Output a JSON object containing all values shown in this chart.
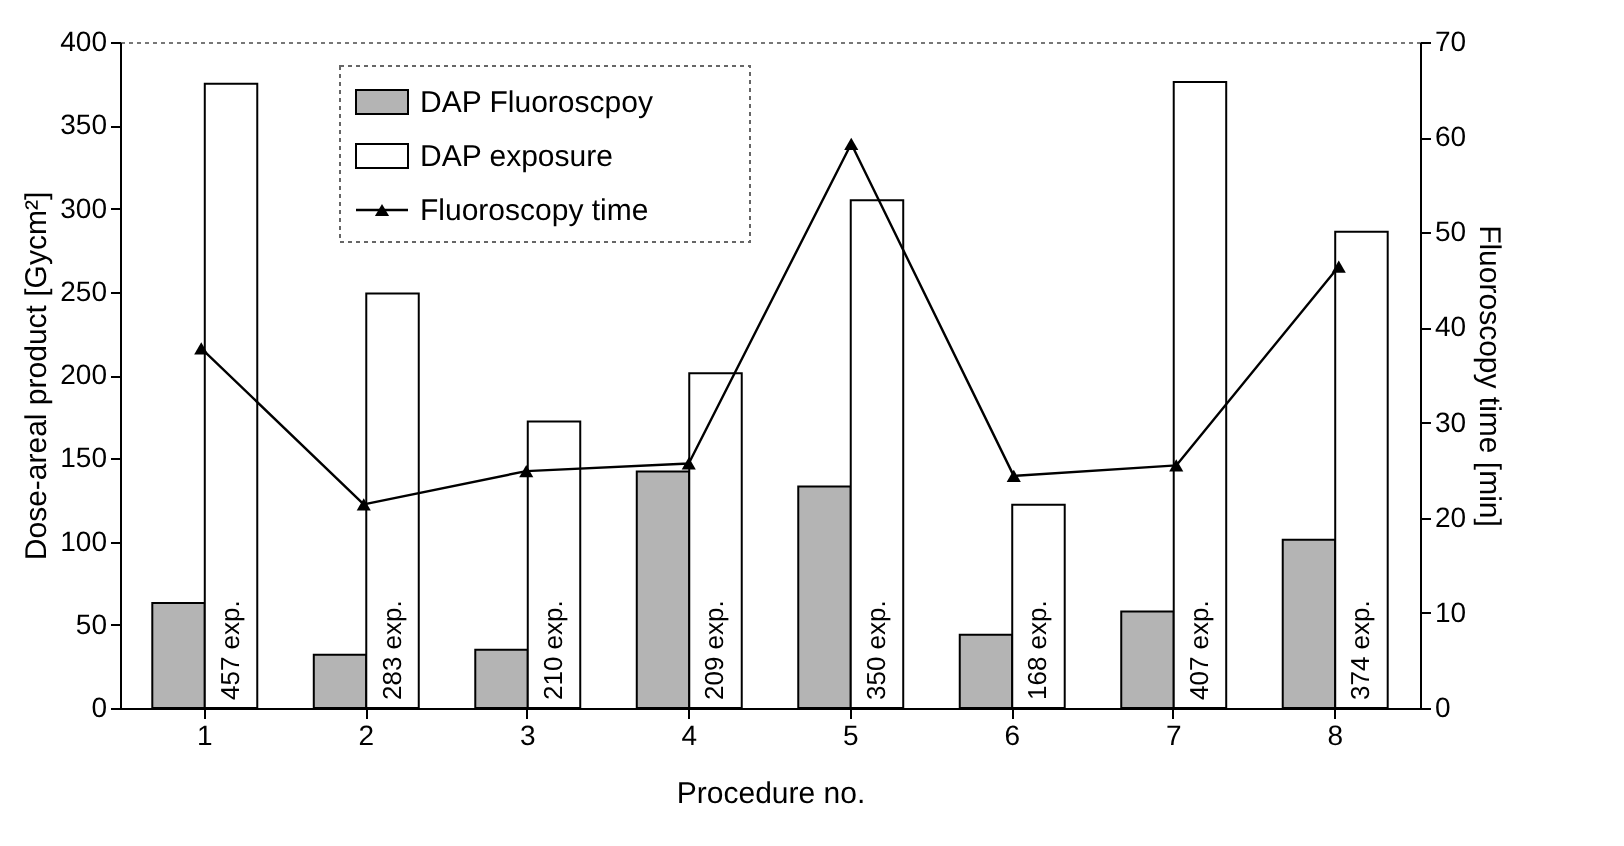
{
  "chart_data": {
    "type": "bar",
    "xlabel": "Procedure no.",
    "ylabel": "Dose-areal product [Gycm²]",
    "y2label": "Fluoroscopy time [min]",
    "categories": [
      "1",
      "2",
      "3",
      "4",
      "5",
      "6",
      "7",
      "8"
    ],
    "series": [
      {
        "name": "DAP Fluoroscpoy",
        "color": "#b4b4b4",
        "values": [
          63,
          32,
          35,
          142,
          133,
          44,
          58,
          101
        ]
      },
      {
        "name": "DAP exposure",
        "color": "#ffffff",
        "values": [
          375,
          249,
          172,
          201,
          305,
          122,
          376,
          286
        ]
      },
      {
        "name": "Fluoroscopy time",
        "type": "line",
        "axis": "y2",
        "color": "#000000",
        "marker": "triangle",
        "values": [
          37.8,
          21.4,
          24.9,
          25.7,
          59.3,
          24.4,
          25.5,
          46.4
        ]
      }
    ],
    "ylim": [
      0,
      400
    ],
    "yticks": [
      0,
      50,
      100,
      150,
      200,
      250,
      300,
      350,
      400
    ],
    "y2lim": [
      0,
      70
    ],
    "y2ticks": [
      0,
      10,
      20,
      30,
      40,
      50,
      60,
      70
    ],
    "legend": "top",
    "grid": false,
    "annotations": [
      {
        "text": "457 exp.",
        "x": "1"
      },
      {
        "text": "283 exp.",
        "x": "2"
      },
      {
        "text": "210 exp.",
        "x": "3"
      },
      {
        "text": "209 exp.",
        "x": "4"
      },
      {
        "text": "350 exp.",
        "x": "5"
      },
      {
        "text": "168 exp.",
        "x": "6"
      },
      {
        "text": "407 exp.",
        "x": "7"
      },
      {
        "text": "374 exp.",
        "x": "8"
      }
    ]
  }
}
